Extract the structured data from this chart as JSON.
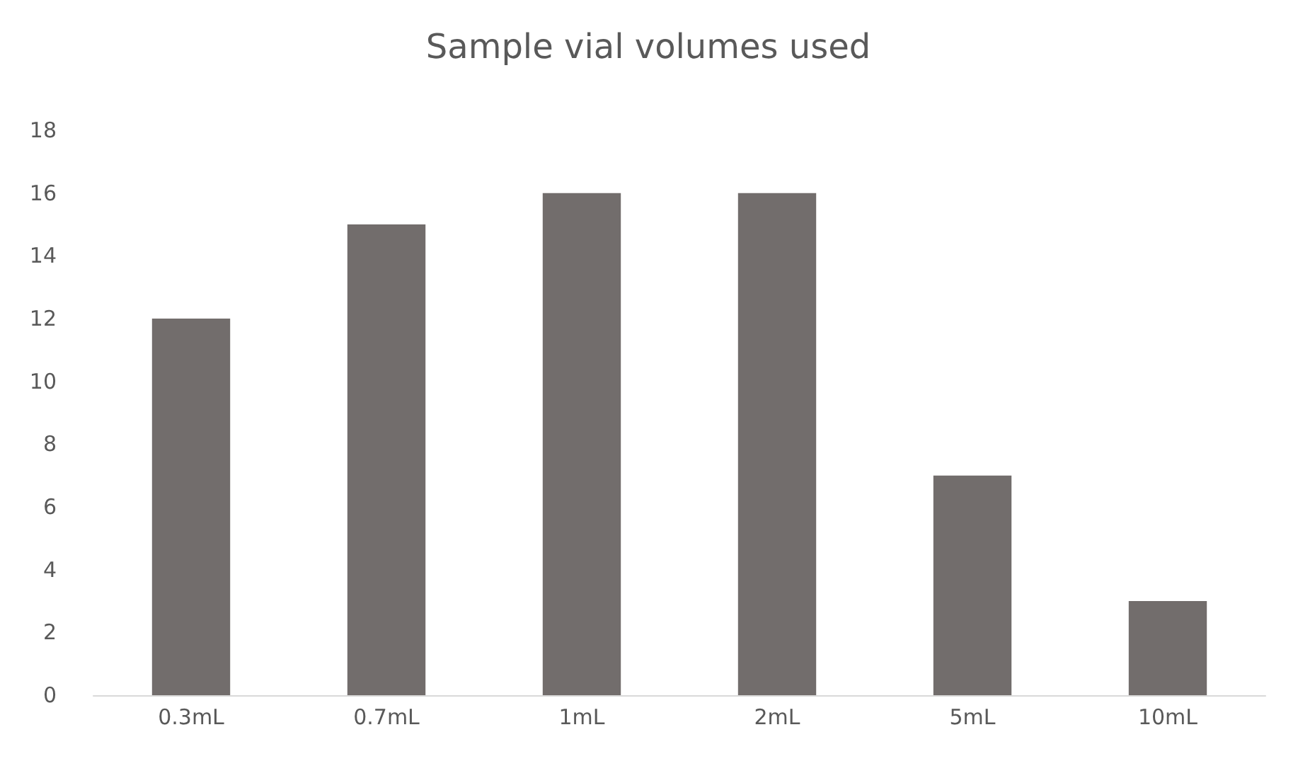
{
  "chart_data": {
    "type": "bar",
    "title": "Sample vial volumes used",
    "categories": [
      "0.3mL",
      "0.7mL",
      "1mL",
      "2mL",
      "5mL",
      "10mL"
    ],
    "values": [
      12,
      15,
      16,
      16,
      7,
      3
    ],
    "color": "#726d6c",
    "ylim": [
      0,
      18
    ],
    "yticks": [
      0,
      2,
      4,
      6,
      8,
      10,
      12,
      14,
      16,
      18
    ],
    "grid": false
  }
}
